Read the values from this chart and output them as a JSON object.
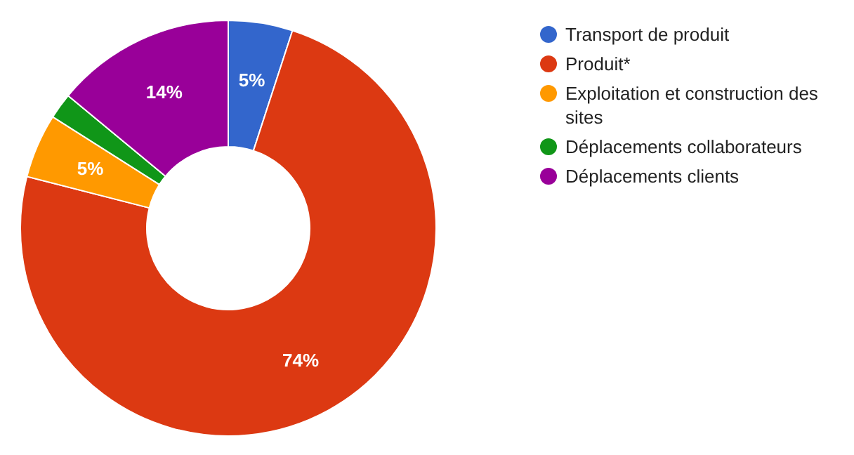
{
  "chart_data": {
    "type": "donut",
    "categories": [
      "Transport de produit",
      "Produit*",
      "Exploitation et construction des sites",
      "Déplacements collaborateurs",
      "Déplacements clients"
    ],
    "values": [
      5,
      74,
      5,
      2,
      14
    ],
    "colors": [
      "#3366cc",
      "#dc3912",
      "#ff9900",
      "#109618",
      "#990099"
    ],
    "value_labels": [
      "5%",
      "74%",
      "5%",
      null,
      "14%"
    ],
    "legend": "right"
  }
}
